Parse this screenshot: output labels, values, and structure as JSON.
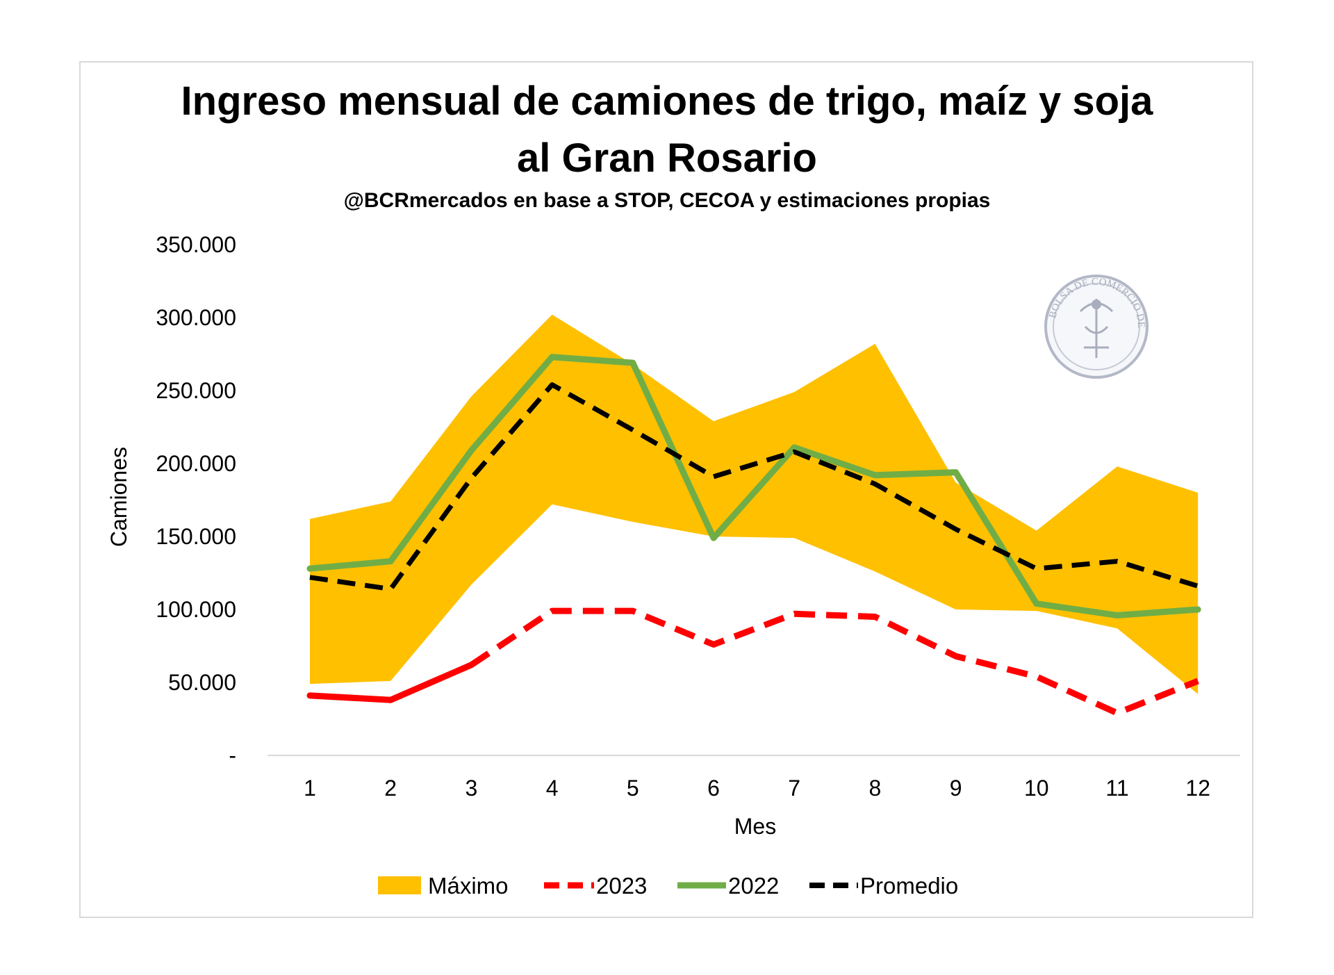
{
  "chart_data": {
    "type": "area",
    "title_line1": "Ingreso mensual de camiones de trigo, maíz y soja",
    "title_line2": "al Gran Rosario",
    "subtitle": "@BCRmercados  en base a STOP,  CECOA y estimaciones propias",
    "xlabel": "Mes",
    "ylabel": "Camiones",
    "ylim": [
      0,
      350000
    ],
    "yticks": [
      "-",
      "50.000",
      "100.000",
      "150.000",
      "200.000",
      "250.000",
      "300.000",
      "350.000"
    ],
    "ytick_values": [
      0,
      50000,
      100000,
      150000,
      200000,
      250000,
      300000,
      350000
    ],
    "categories": [
      "1",
      "2",
      "3",
      "4",
      "5",
      "6",
      "7",
      "8",
      "9",
      "10",
      "11",
      "12"
    ],
    "band": {
      "name": "Máximo",
      "color": "#FFC000",
      "upper": [
        162000,
        174000,
        246000,
        302000,
        268000,
        229000,
        249000,
        282000,
        187000,
        154000,
        198000,
        180000
      ],
      "lower": [
        49000,
        51000,
        117000,
        172000,
        160000,
        150000,
        149000,
        126000,
        100000,
        99000,
        87000,
        42000
      ]
    },
    "series": [
      {
        "name": "2023",
        "color": "#FF0000",
        "style": "dashed-after-2",
        "values": [
          41000,
          38000,
          62000,
          99000,
          99000,
          76000,
          97000,
          95000,
          68000,
          54000,
          29000,
          51000
        ]
      },
      {
        "name": "2022",
        "color": "#70AD47",
        "style": "solid",
        "values": [
          128000,
          133000,
          209000,
          273000,
          269000,
          149000,
          211000,
          192000,
          194000,
          104000,
          96000,
          100000
        ]
      },
      {
        "name": "Promedio",
        "color": "#000000",
        "style": "dashed",
        "values": [
          122000,
          114000,
          190000,
          254000,
          223000,
          191000,
          208000,
          186000,
          155000,
          128000,
          133000,
          116000
        ]
      }
    ],
    "legend": {
      "position": "bottom",
      "items": [
        "Máximo",
        "2023",
        "2022",
        "Promedio"
      ]
    },
    "watermark": "BOLSA DE COMERCIO DE ROSARIO"
  }
}
